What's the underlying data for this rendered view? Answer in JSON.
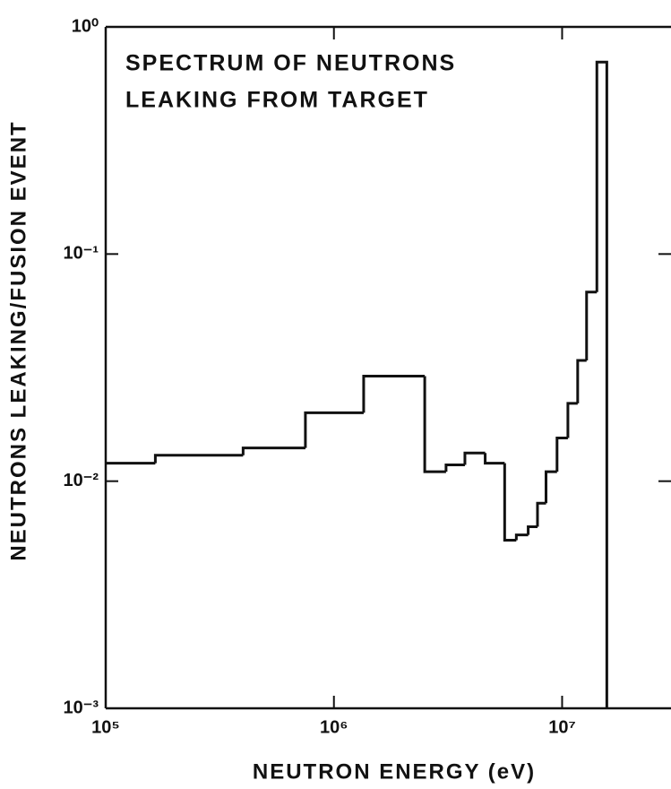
{
  "chart_data": {
    "type": "histogram",
    "annotations": [
      "SPECTRUM  OF  NEUTRONS",
      "LEAKING  FROM  TARGET"
    ],
    "x_label": "NEUTRON  ENERGY (eV)",
    "y_label": "NEUTRONS LEAKING/FUSION EVENT",
    "bins": [
      100000,
      165000,
      400000,
      750000,
      1350000,
      2500000,
      3100000,
      3750000,
      4600000,
      5600000,
      6300000,
      7100000,
      7800000,
      8500000,
      9500000,
      10600000,
      11700000,
      12800000,
      14200000,
      15700000
    ],
    "values": [
      0.012,
      0.013,
      0.014,
      0.02,
      0.029,
      0.011,
      0.0118,
      0.0133,
      0.012,
      0.0055,
      0.0058,
      0.0063,
      0.008,
      0.011,
      0.0155,
      0.022,
      0.034,
      0.068,
      0.7
    ],
    "color": "#111111",
    "xlog": true,
    "ylog": true,
    "xlim": [
      100000,
      30000000
    ],
    "ylim": [
      0.001,
      1
    ],
    "xticks": [
      {
        "value": 100000,
        "label": "10⁵"
      },
      {
        "value": 1000000,
        "label": "10⁶"
      },
      {
        "value": 10000000,
        "label": "10⁷"
      }
    ],
    "yticks": [
      {
        "value": 1,
        "label": "10⁰"
      },
      {
        "value": 0.1,
        "label": "10⁻¹"
      },
      {
        "value": 0.01,
        "label": "10⁻²"
      },
      {
        "value": 0.001,
        "label": "10⁻³"
      }
    ]
  }
}
